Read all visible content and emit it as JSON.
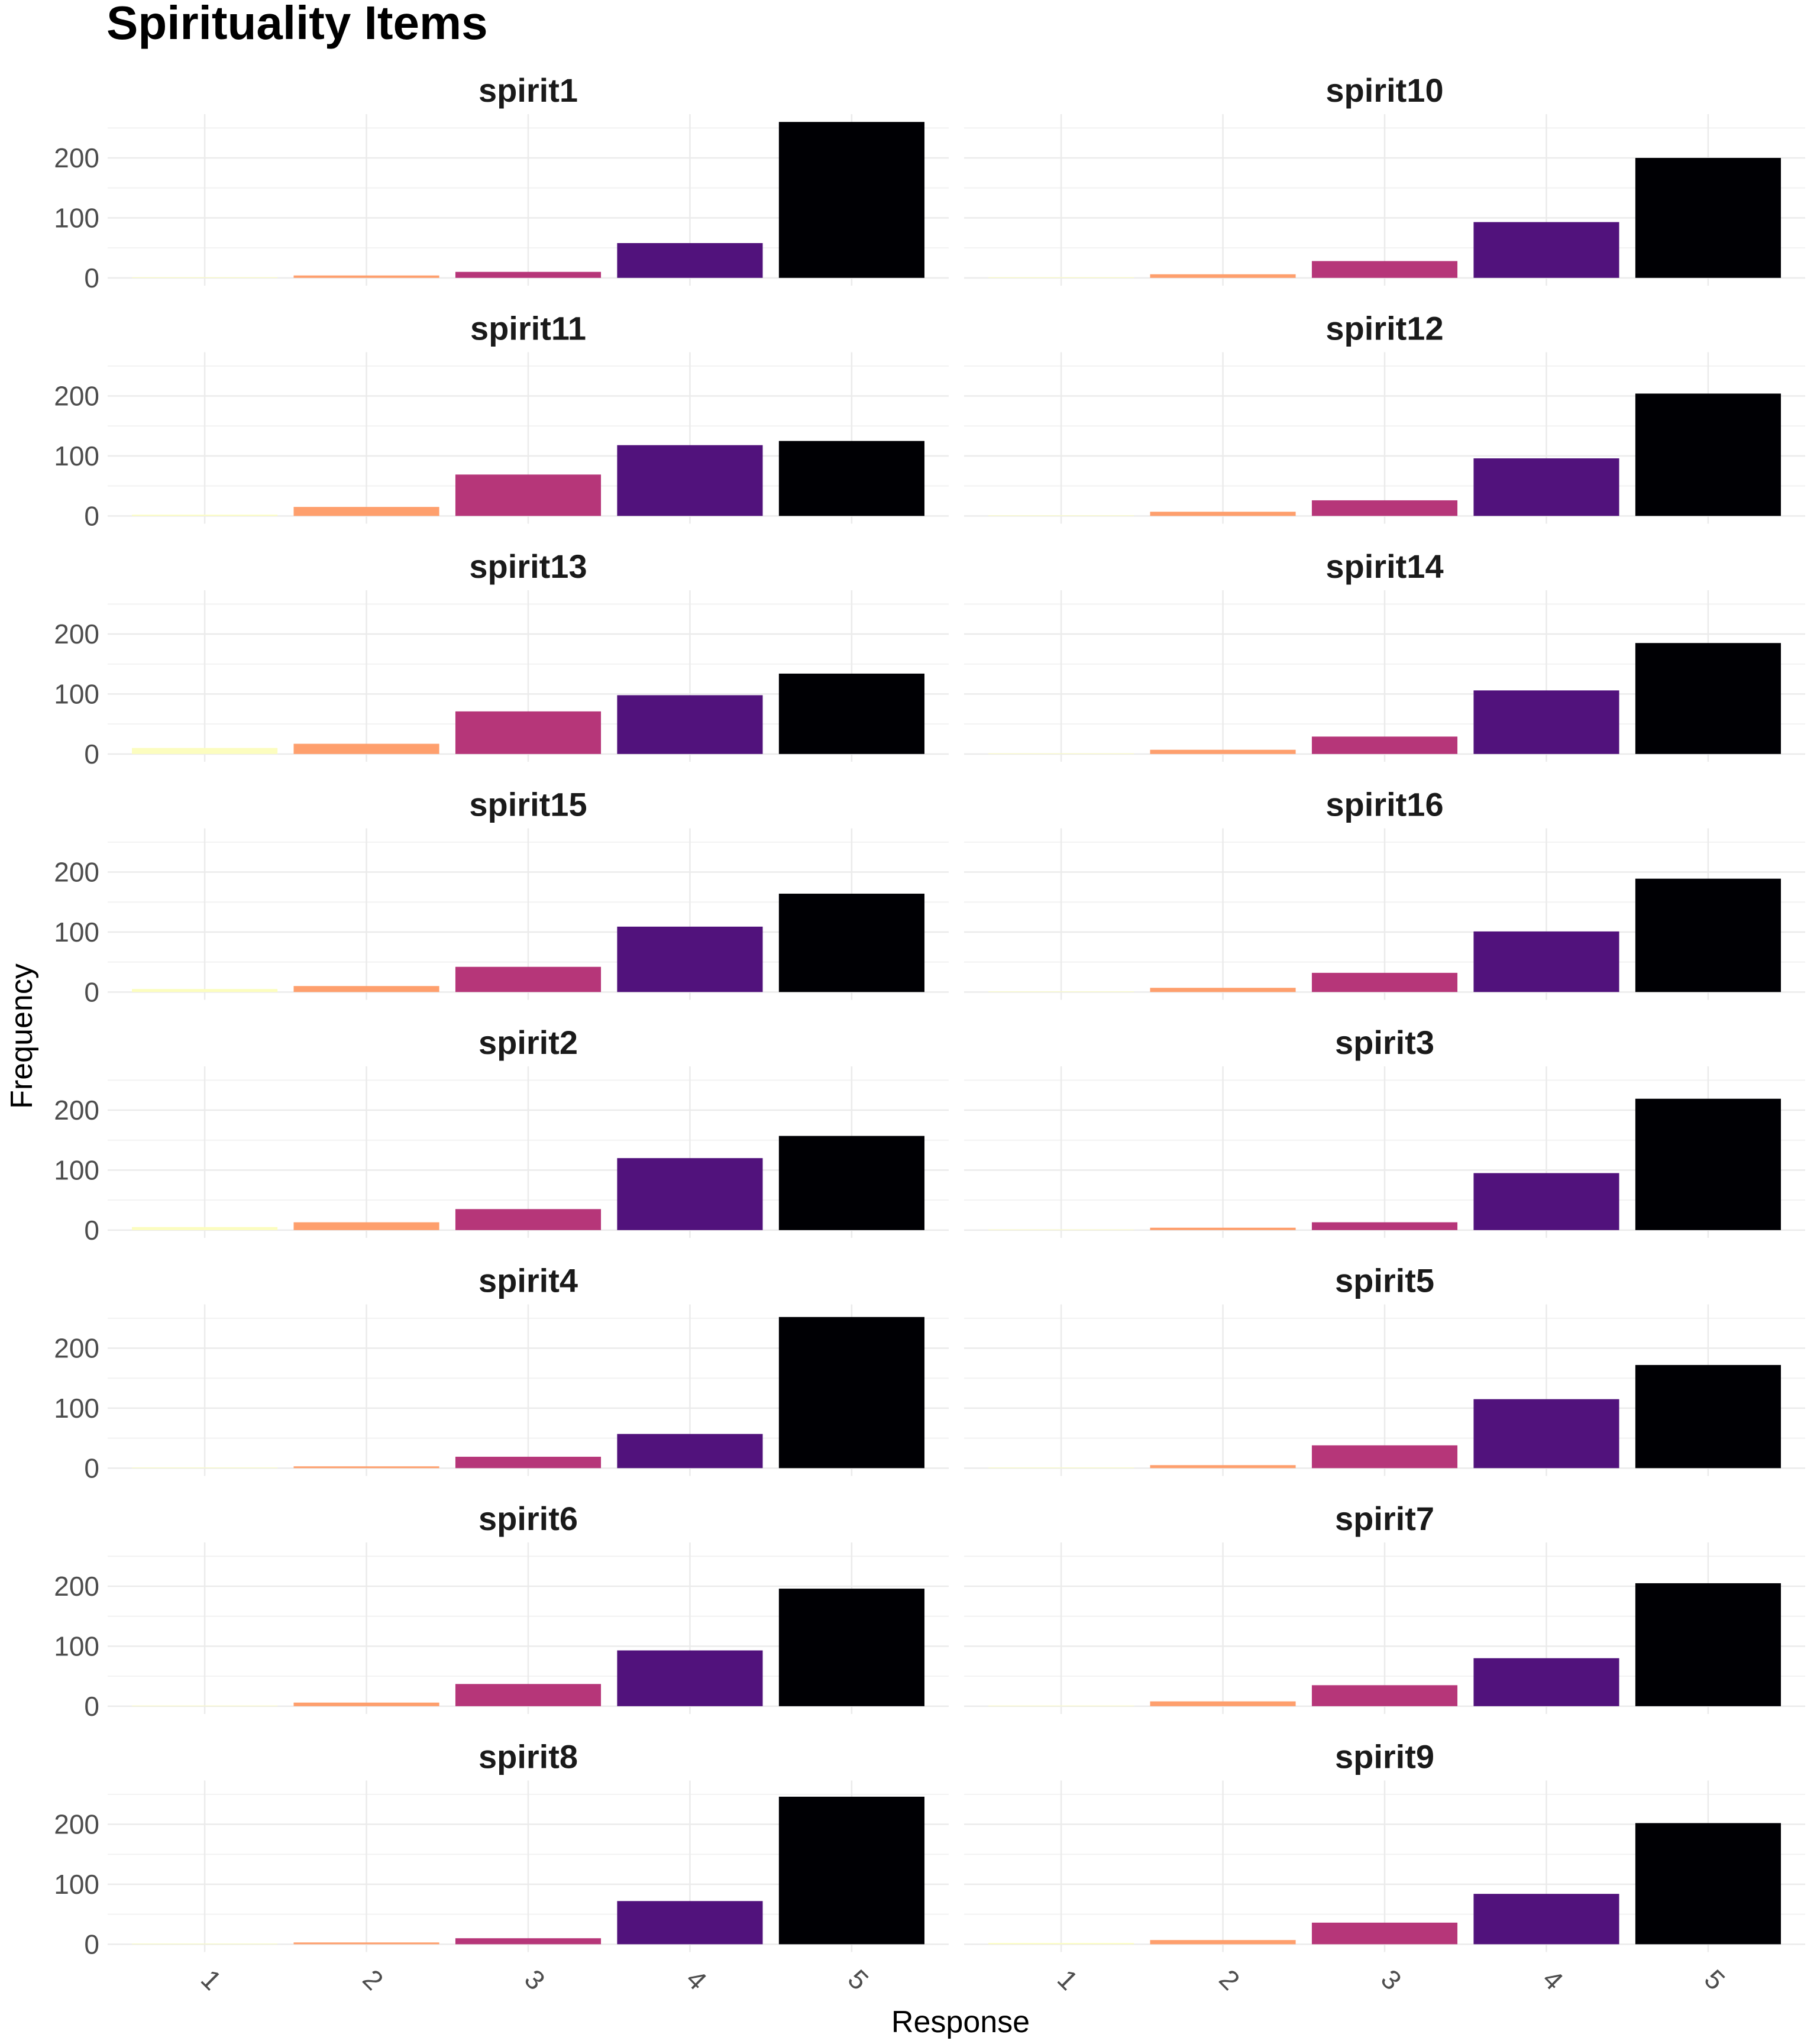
{
  "chart_data": {
    "type": "bar",
    "title": "Spirituality Items",
    "xlabel": "Response",
    "ylabel": "Frequency",
    "categories": [
      "1",
      "2",
      "3",
      "4",
      "5"
    ],
    "ylim": [
      0,
      260
    ],
    "yticks": [
      0,
      100,
      200
    ],
    "grid": true,
    "legend": "none",
    "colors": [
      "#FCFDBF",
      "#FE9F6D",
      "#B63679",
      "#51127C",
      "#000004"
    ],
    "facets": [
      {
        "name": "spirit1",
        "values": [
          1,
          4,
          10,
          58,
          260
        ]
      },
      {
        "name": "spirit10",
        "values": [
          1,
          6,
          28,
          93,
          200
        ]
      },
      {
        "name": "spirit11",
        "values": [
          2,
          15,
          69,
          118,
          125
        ]
      },
      {
        "name": "spirit12",
        "values": [
          1,
          7,
          26,
          96,
          204
        ]
      },
      {
        "name": "spirit13",
        "values": [
          10,
          17,
          71,
          98,
          134
        ]
      },
      {
        "name": "spirit14",
        "values": [
          1,
          7,
          29,
          106,
          185
        ]
      },
      {
        "name": "spirit15",
        "values": [
          5,
          10,
          42,
          109,
          164
        ]
      },
      {
        "name": "spirit16",
        "values": [
          1,
          7,
          32,
          101,
          189
        ]
      },
      {
        "name": "spirit2",
        "values": [
          5,
          13,
          35,
          120,
          157
        ]
      },
      {
        "name": "spirit3",
        "values": [
          1,
          4,
          13,
          95,
          219
        ]
      },
      {
        "name": "spirit4",
        "values": [
          1,
          3,
          19,
          57,
          252
        ]
      },
      {
        "name": "spirit5",
        "values": [
          1,
          5,
          38,
          115,
          172
        ]
      },
      {
        "name": "spirit6",
        "values": [
          1,
          6,
          37,
          93,
          196
        ]
      },
      {
        "name": "spirit7",
        "values": [
          1,
          8,
          35,
          80,
          205
        ]
      },
      {
        "name": "spirit8",
        "values": [
          1,
          3,
          10,
          72,
          246
        ]
      },
      {
        "name": "spirit9",
        "values": [
          2,
          7,
          36,
          84,
          202
        ]
      }
    ]
  }
}
